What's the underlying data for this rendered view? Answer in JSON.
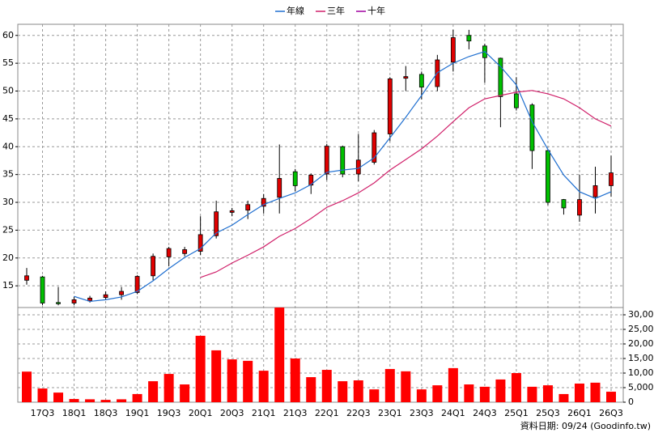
{
  "chart_data": {
    "type": "candlestick",
    "categories": [
      null,
      "17Q3",
      null,
      "18Q1",
      null,
      "18Q3",
      null,
      "19Q1",
      null,
      "19Q3",
      null,
      "20Q1",
      null,
      "20Q3",
      null,
      "21Q1",
      null,
      "21Q3",
      null,
      "22Q1",
      null,
      "22Q3",
      null,
      "23Q1",
      null,
      "23Q3",
      null,
      "24Q1",
      null,
      "24Q3",
      null,
      "25Q1",
      null,
      "25Q3",
      null,
      "26Q1",
      null,
      "26Q3"
    ],
    "open": [
      16,
      16.6,
      12,
      11.9,
      12.3,
      12.9,
      13.4,
      13.8,
      16.8,
      20.2,
      20.8,
      21.2,
      24,
      28.2,
      28.6,
      29.3,
      30.9,
      35.5,
      33.1,
      35.1,
      40,
      35.1,
      37.2,
      42.3,
      52.3,
      53,
      50.8,
      55.2,
      60,
      58.1,
      55.9,
      49.5,
      47.5,
      39.3,
      30.5,
      27.7,
      31,
      33
    ],
    "high": [
      18.2,
      16.8,
      14.8,
      13,
      13.2,
      14,
      14.8,
      16.9,
      20.8,
      22,
      22,
      27.5,
      30.3,
      29,
      30.3,
      31.5,
      40.4,
      36,
      35.2,
      40.5,
      40.2,
      42.3,
      43,
      52.5,
      54.5,
      53.5,
      56.5,
      61,
      61,
      58.5,
      56,
      52.5,
      47.8,
      39.5,
      30.6,
      35,
      36.4,
      38.4
    ],
    "low": [
      15.2,
      11.5,
      11.5,
      11.5,
      12,
      12.5,
      12.5,
      13.5,
      16,
      18.5,
      20.3,
      20.5,
      23.5,
      27.5,
      27,
      28,
      28,
      32,
      31.5,
      34,
      34.5,
      33.8,
      36.8,
      41,
      50,
      48.5,
      50,
      53.5,
      57.5,
      51.5,
      43.5,
      46.5,
      36,
      29.5,
      27.8,
      26.5,
      28,
      31
    ],
    "close": [
      16.8,
      11.9,
      11.9,
      12.5,
      12.8,
      13.4,
      14,
      16.7,
      20.3,
      21.7,
      21.5,
      24.2,
      28.3,
      28.5,
      29.6,
      30.7,
      34.3,
      33,
      34.9,
      40.1,
      35.1,
      37.6,
      42.5,
      52.2,
      52.6,
      50.7,
      55.6,
      59.6,
      59,
      56,
      49,
      47,
      39.3,
      30,
      29,
      30.5,
      33,
      35.3
    ],
    "up_color": "#e00000",
    "down_color": "#00c000",
    "series": [
      {
        "name": "年線",
        "color": "#1f6fd0",
        "values": [
          null,
          null,
          null,
          13.1,
          12.2,
          12.5,
          13,
          14,
          15.9,
          18.1,
          20.1,
          21.7,
          24.5,
          25.9,
          27.8,
          29.6,
          30.7,
          31.7,
          33.2,
          35.4,
          35.8,
          36.1,
          38,
          41.6,
          45.3,
          49.2,
          53.3,
          55,
          56.2,
          57.1,
          54.4,
          51.1,
          44.5,
          39.5,
          34.9,
          31.9,
          30.7,
          31.9
        ]
      },
      {
        "name": "三年",
        "color": "#d0206a",
        "values": [
          null,
          null,
          null,
          null,
          null,
          null,
          null,
          null,
          null,
          null,
          null,
          16.5,
          17.5,
          19.1,
          20.5,
          22,
          23.9,
          25.3,
          27.1,
          29.1,
          30.3,
          31.7,
          33.5,
          35.8,
          37.7,
          39.6,
          41.9,
          44.5,
          47,
          48.6,
          49.2,
          49.8,
          50.1,
          49.5,
          48.6,
          47,
          45,
          43.7
        ]
      },
      {
        "name": "十年",
        "color": "#a000a0",
        "values": [
          null,
          null,
          null,
          null,
          null,
          null,
          null,
          null,
          null,
          null,
          null,
          null,
          null,
          null,
          null,
          null,
          null,
          null,
          null,
          null,
          null,
          null,
          null,
          null,
          null,
          null,
          null,
          null,
          null,
          null,
          null,
          null,
          null,
          null,
          null,
          null,
          null,
          null
        ]
      }
    ],
    "ylim": [
      11.1,
      62
    ],
    "yticks": [
      15,
      20,
      25,
      30,
      35,
      40,
      45,
      50,
      55,
      60
    ],
    "volume": {
      "color": "#ff0000",
      "values": [
        10500,
        4700,
        3300,
        1100,
        1000,
        800,
        1000,
        2800,
        7200,
        9700,
        6100,
        22800,
        17800,
        14700,
        14200,
        10800,
        32500,
        15000,
        8600,
        11100,
        7200,
        7500,
        4400,
        11400,
        10600,
        4400,
        5800,
        11700,
        6100,
        5300,
        7800,
        10000,
        5300,
        5800,
        2800,
        6400,
        6700,
        3600
      ],
      "ylim": [
        0,
        32500
      ],
      "yticks": [
        0,
        {
          "value": 5000,
          "label": "5,000"
        },
        {
          "value": 10000,
          "label": "10,000"
        },
        {
          "value": 15000,
          "label": "15,000"
        },
        {
          "value": 20000,
          "label": "20,000"
        },
        {
          "value": 25000,
          "label": "25,000"
        },
        {
          "value": 30000,
          "label": "30,000"
        }
      ]
    },
    "grid": true,
    "footer": "資料日期: 09/24 (Goodinfo.tw)"
  }
}
